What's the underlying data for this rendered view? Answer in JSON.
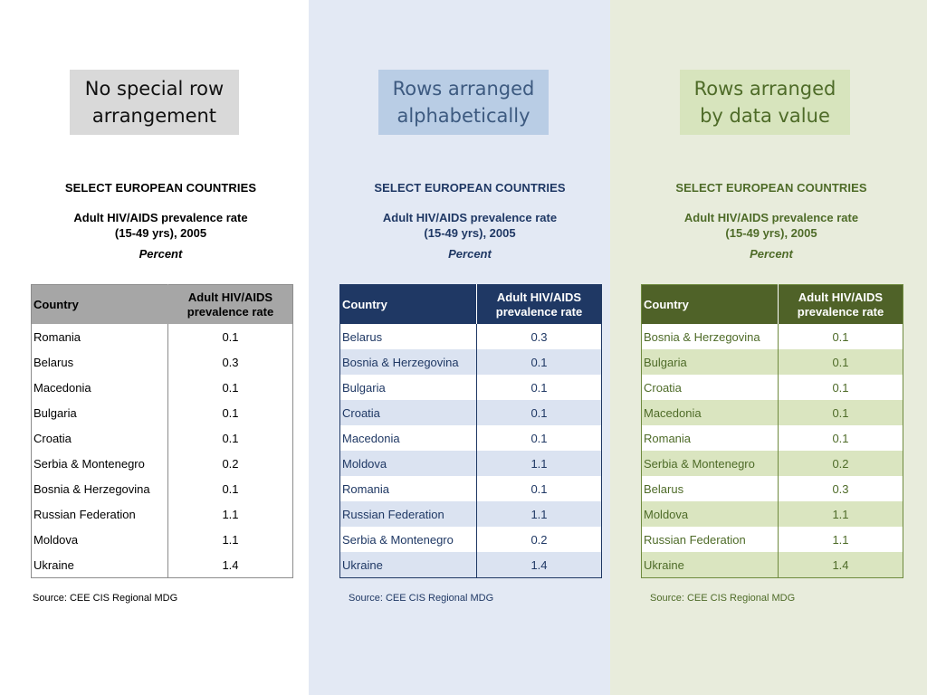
{
  "panels": [
    {
      "tag": "No special row\narrangement",
      "heading": "SELECT EUROPEAN COUNTRIES",
      "subheading": "Adult HIV/AIDS prevalence rate\n(15-49 yrs), 2005",
      "unit": "Percent",
      "columns": [
        "Country",
        "Adult HIV/AIDS prevalence rate"
      ],
      "rows": [
        [
          "Romania",
          "0.1"
        ],
        [
          "Belarus",
          "0.3"
        ],
        [
          "Macedonia",
          "0.1"
        ],
        [
          "Bulgaria",
          "0.1"
        ],
        [
          "Croatia",
          "0.1"
        ],
        [
          "Serbia & Montenegro",
          "0.2"
        ],
        [
          "Bosnia & Herzegovina",
          "0.1"
        ],
        [
          "Russian Federation",
          "1.1"
        ],
        [
          "Moldova",
          "1.1"
        ],
        [
          "Ukraine",
          "1.4"
        ]
      ],
      "source": "Source: CEE CIS Regional MDG"
    },
    {
      "tag": "Rows arranged\nalphabetically",
      "heading": "SELECT EUROPEAN COUNTRIES",
      "subheading": "Adult HIV/AIDS prevalence rate\n(15-49 yrs), 2005",
      "unit": "Percent",
      "columns": [
        "Country",
        "Adult HIV/AIDS prevalence rate"
      ],
      "rows": [
        [
          "Belarus",
          "0.3"
        ],
        [
          "Bosnia & Herzegovina",
          "0.1"
        ],
        [
          "Bulgaria",
          "0.1"
        ],
        [
          "Croatia",
          "0.1"
        ],
        [
          "Macedonia",
          "0.1"
        ],
        [
          "Moldova",
          "1.1"
        ],
        [
          "Romania",
          "0.1"
        ],
        [
          "Russian Federation",
          "1.1"
        ],
        [
          "Serbia & Montenegro",
          "0.2"
        ],
        [
          "Ukraine",
          "1.4"
        ]
      ],
      "source": "Source: CEE CIS Regional MDG"
    },
    {
      "tag": "Rows arranged\nby data value",
      "heading": "SELECT EUROPEAN COUNTRIES",
      "subheading": "Adult HIV/AIDS prevalence rate\n(15-49 yrs), 2005",
      "unit": "Percent",
      "columns": [
        "Country",
        "Adult HIV/AIDS prevalence rate"
      ],
      "rows": [
        [
          "Bosnia & Herzegovina",
          "0.1"
        ],
        [
          "Bulgaria",
          "0.1"
        ],
        [
          "Croatia",
          "0.1"
        ],
        [
          "Macedonia",
          "0.1"
        ],
        [
          "Romania",
          "0.1"
        ],
        [
          "Serbia & Montenegro",
          "0.2"
        ],
        [
          "Belarus",
          "0.3"
        ],
        [
          "Moldova",
          "1.1"
        ],
        [
          "Russian Federation",
          "1.1"
        ],
        [
          "Ukraine",
          "1.4"
        ]
      ],
      "source": "Source: CEE CIS Regional MDG"
    }
  ]
}
